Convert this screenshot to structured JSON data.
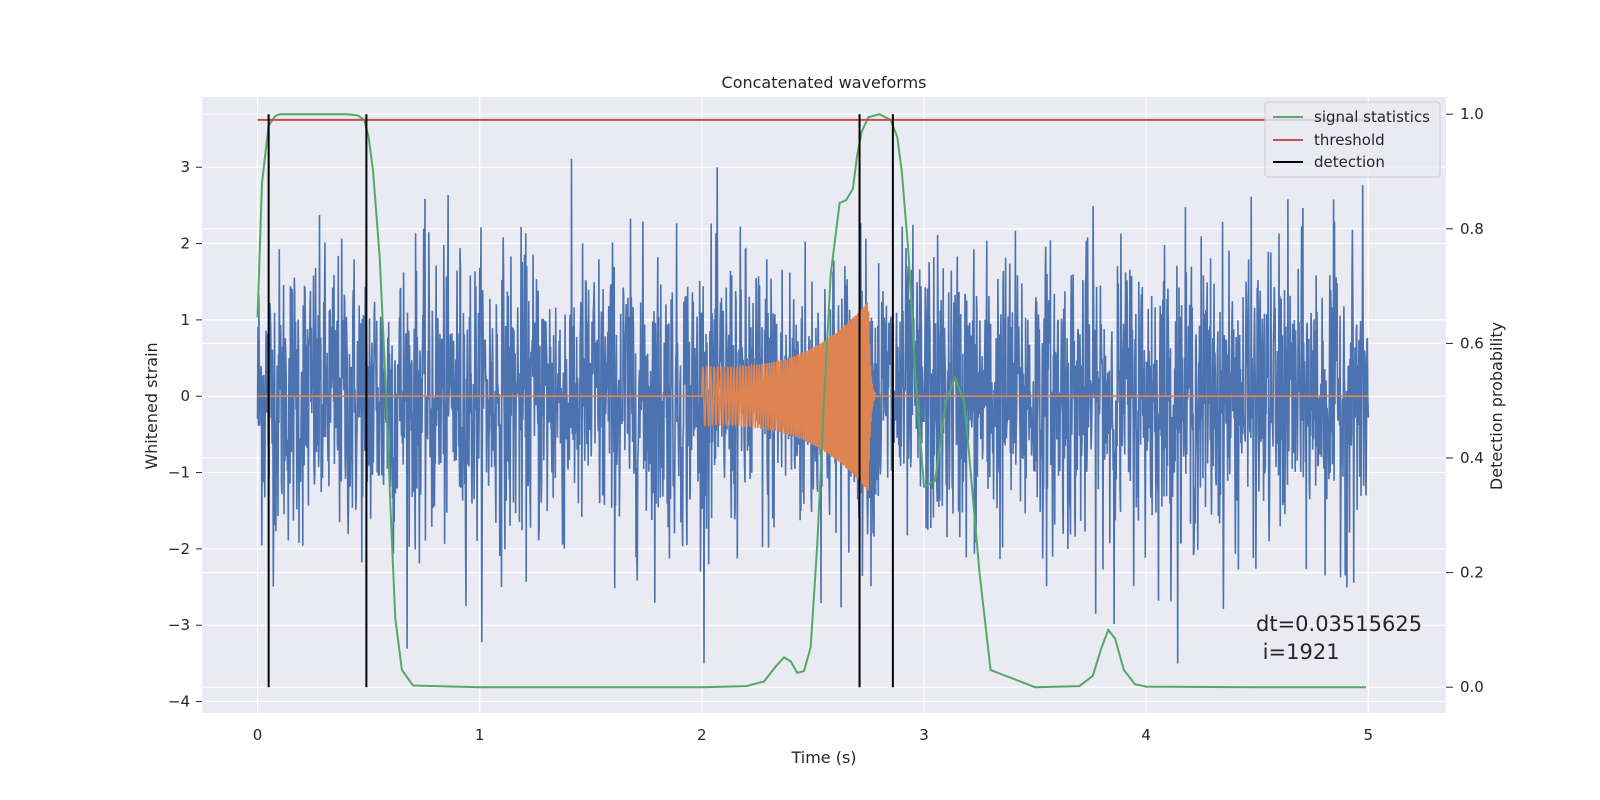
{
  "chart_data": {
    "type": "line",
    "title": "Concatenated waveforms",
    "xlabel": "Time (s)",
    "ylabel": "Whitened strain",
    "y2label": "Detection probability",
    "xlim": [
      -0.25,
      5.35
    ],
    "ylim": [
      -4.15,
      3.92
    ],
    "y2lim": [
      -0.045,
      1.03
    ],
    "xticks": [
      0,
      1,
      2,
      3,
      4,
      5
    ],
    "xtick_labels": [
      "0",
      "1",
      "2",
      "3",
      "4",
      "5"
    ],
    "yticks": [
      -4,
      -3,
      -2,
      -1,
      0,
      1,
      2,
      3
    ],
    "ytick_labels": [
      "−4",
      "−3",
      "−2",
      "−1",
      "0",
      "1",
      "2",
      "3"
    ],
    "y2ticks": [
      0.0,
      0.2,
      0.4,
      0.6,
      0.8,
      1.0
    ],
    "y2tick_labels": [
      "0.0",
      "0.2",
      "0.4",
      "0.6",
      "0.8",
      "1.0"
    ],
    "grid": true,
    "legend_position": "top-right",
    "legend": [
      {
        "label": "signal statistics",
        "color": "#55a868"
      },
      {
        "label": "threshold",
        "color": "#c44e52"
      },
      {
        "label": "detection",
        "color": "#000000"
      }
    ],
    "series": [
      {
        "kind": "noise",
        "color": "#4c72b0",
        "x_range": [
          0,
          5
        ],
        "peak_amplitude": 3.5,
        "typical_band": [
          -1.0,
          1.3
        ]
      },
      {
        "kind": "chirp",
        "color": "#dd8452",
        "x_range": [
          0,
          5
        ],
        "chirp_start": 2.0,
        "merger": 2.75,
        "amplitude_start": 0.38,
        "amplitude_merger": 1.25,
        "min_at_merger": -1.25
      },
      {
        "name": "signal statistics",
        "axis": "right",
        "color": "#55a868",
        "x": [
          0,
          0.02,
          0.05,
          0.08,
          0.1,
          0.15,
          0.2,
          0.3,
          0.4,
          0.45,
          0.48,
          0.5,
          0.52,
          0.55,
          0.58,
          0.6,
          0.62,
          0.65,
          0.7,
          1.0,
          1.5,
          2.0,
          2.2,
          2.28,
          2.33,
          2.37,
          2.4,
          2.43,
          2.46,
          2.49,
          2.52,
          2.55,
          2.58,
          2.62,
          2.65,
          2.68,
          2.7,
          2.72,
          2.75,
          2.8,
          2.85,
          2.88,
          2.9,
          2.93,
          2.96,
          3.0,
          3.05,
          3.1,
          3.14,
          3.18,
          3.2,
          3.25,
          3.3,
          3.5,
          3.7,
          3.76,
          3.8,
          3.83,
          3.86,
          3.9,
          3.95,
          4.0,
          4.5,
          4.99
        ],
        "y": [
          0.645,
          0.88,
          0.98,
          0.997,
          1.0,
          1.0,
          1.0,
          1.0,
          1.0,
          0.998,
          0.99,
          0.96,
          0.9,
          0.75,
          0.5,
          0.3,
          0.12,
          0.03,
          0.003,
          0.0,
          0.0,
          0.0,
          0.002,
          0.01,
          0.035,
          0.052,
          0.045,
          0.025,
          0.028,
          0.07,
          0.25,
          0.5,
          0.72,
          0.845,
          0.85,
          0.87,
          0.93,
          0.97,
          0.995,
          1.0,
          0.99,
          0.96,
          0.9,
          0.76,
          0.55,
          0.35,
          0.36,
          0.5,
          0.54,
          0.5,
          0.42,
          0.2,
          0.03,
          0.0,
          0.002,
          0.02,
          0.07,
          0.1,
          0.085,
          0.03,
          0.005,
          0.001,
          0.0,
          0.0
        ]
      },
      {
        "name": "threshold",
        "axis": "right",
        "color": "#c44e52",
        "x": [
          0,
          5
        ],
        "y": [
          0.99,
          0.99
        ]
      },
      {
        "name": "detection",
        "axis": "right",
        "color": "#000000",
        "type": "vlines",
        "x": [
          0.05,
          0.49,
          2.71,
          2.86
        ],
        "ymin": 0.0,
        "ymax": 1.0
      }
    ],
    "annotation": {
      "line1": "dt=0.03515625",
      "line2": " i=1921",
      "x": 4.5,
      "y": -3.3
    }
  }
}
